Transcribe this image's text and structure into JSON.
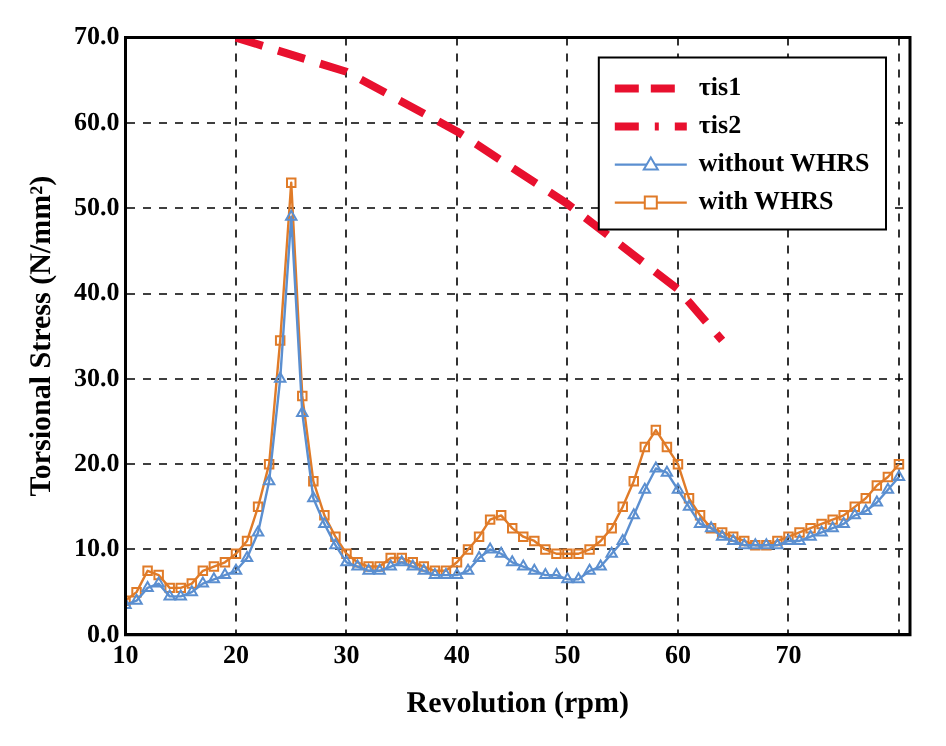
{
  "chart_data": {
    "type": "line",
    "xlabel": "Revolution (rpm)",
    "ylabel": "Torsional Stress (N/mm²)",
    "xlim": [
      10,
      81
    ],
    "xticks": [
      10,
      20,
      30,
      40,
      50,
      60,
      70,
      {
        "value": 80,
        "label": null
      }
    ],
    "ylim": [
      0,
      70
    ],
    "yticks": [
      {
        "value": 0,
        "label": "0.0"
      },
      {
        "value": 10,
        "label": "10.0"
      },
      {
        "value": 20,
        "label": "20.0"
      },
      {
        "value": 30,
        "label": "30.0"
      },
      {
        "value": 40,
        "label": "40.0"
      },
      {
        "value": 50,
        "label": "50.0"
      },
      {
        "value": 60,
        "label": "60.0"
      },
      {
        "value": 70,
        "label": "70.0"
      }
    ],
    "grid": true,
    "legend": "top right",
    "series": [
      {
        "name": "τis1",
        "color": "#e8102e",
        "line_style": "dashed",
        "marker": "none",
        "x": [
          20,
          30,
          40,
          50,
          60,
          64
        ],
        "values": [
          70,
          66,
          59,
          50.5,
          40.5,
          34.5
        ]
      },
      {
        "name": "τis2",
        "color": "#e8102e",
        "line_style": "dashed",
        "marker": "none"
      },
      {
        "name": "without WHRS",
        "color": "#5b8fd0",
        "marker": "triangle",
        "x": [
          10,
          11,
          12,
          13,
          14,
          15,
          16,
          17,
          18,
          19,
          20,
          21,
          22,
          23,
          24,
          25,
          26,
          27,
          28,
          29,
          30,
          31,
          32,
          33,
          34,
          35,
          36,
          37,
          38,
          39,
          40,
          41,
          42,
          43,
          44,
          45,
          46,
          47,
          48,
          49,
          50,
          51,
          52,
          53,
          54,
          55,
          56,
          57,
          58,
          59,
          60,
          61,
          62,
          63,
          64,
          65,
          66,
          67,
          68,
          69,
          70,
          71,
          72,
          73,
          74,
          75,
          76,
          77,
          78,
          79,
          80
        ],
        "values": [
          3.5,
          4,
          5.5,
          6,
          4.5,
          4.5,
          5,
          6,
          6.5,
          7,
          7.5,
          9,
          12,
          18,
          30,
          49,
          26,
          16,
          13,
          10.5,
          8.5,
          8,
          7.5,
          7.5,
          8,
          8.5,
          8,
          7.5,
          7,
          7,
          7,
          7.5,
          9,
          10,
          9.5,
          8.5,
          8,
          7.5,
          7,
          7,
          6.5,
          6.5,
          7.5,
          8,
          9.5,
          11,
          14,
          17,
          19.5,
          19,
          17,
          15,
          13,
          12.5,
          11.5,
          11,
          10.5,
          10.5,
          10.5,
          10.5,
          11,
          11,
          11.5,
          12,
          12.5,
          13,
          14,
          14.5,
          15.5,
          17,
          18.5
        ]
      },
      {
        "name": "with WHRS",
        "color": "#e07b28",
        "marker": "square",
        "x": [
          10,
          11,
          12,
          13,
          14,
          15,
          16,
          17,
          18,
          19,
          20,
          21,
          22,
          23,
          24,
          25,
          26,
          27,
          28,
          29,
          30,
          31,
          32,
          33,
          34,
          35,
          36,
          37,
          38,
          39,
          40,
          41,
          42,
          43,
          44,
          45,
          46,
          47,
          48,
          49,
          50,
          51,
          52,
          53,
          54,
          55,
          56,
          57,
          58,
          59,
          60,
          61,
          62,
          63,
          64,
          65,
          66,
          67,
          68,
          69,
          70,
          71,
          72,
          73,
          74,
          75,
          76,
          77,
          78,
          79,
          80
        ],
        "values": [
          4,
          5,
          7.5,
          7,
          5.5,
          5.5,
          6,
          7.5,
          8,
          8.5,
          9.5,
          11,
          15,
          20,
          34.5,
          53,
          28,
          18,
          14,
          11.5,
          9.5,
          8.5,
          8,
          8,
          9,
          9,
          8.5,
          8,
          7.5,
          7.5,
          8.5,
          10,
          11.5,
          13.5,
          14,
          12.5,
          11.5,
          11,
          10,
          9.5,
          9.5,
          9.5,
          10,
          11,
          12.5,
          15,
          18,
          22,
          24,
          22,
          20,
          16,
          14,
          12.5,
          12,
          11.5,
          11,
          10.5,
          10.5,
          11,
          11.5,
          12,
          12.5,
          13,
          13.5,
          14,
          15,
          16,
          17.5,
          18.5,
          20
        ]
      }
    ]
  }
}
